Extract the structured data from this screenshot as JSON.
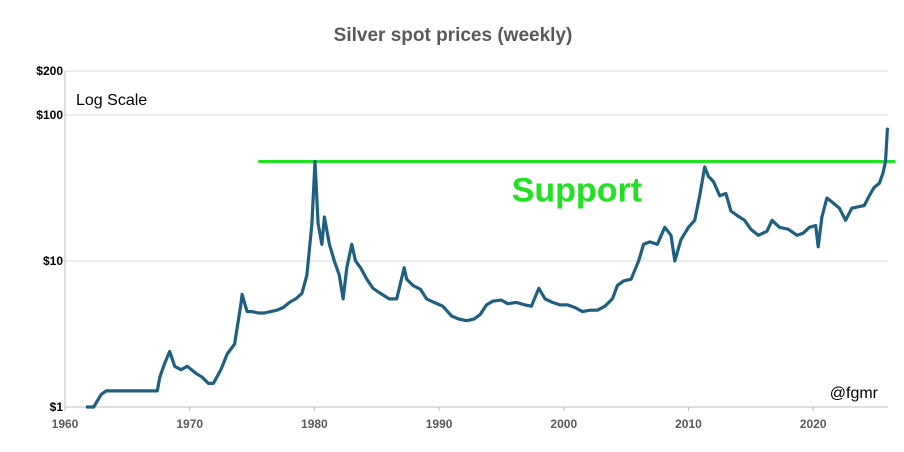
{
  "chart_data": {
    "type": "line",
    "title": "Silver spot prices (weekly)",
    "xlabel": "",
    "ylabel": "",
    "y_scale": "log",
    "scale_note": "Log Scale",
    "credit": "@fgmr",
    "xlim": [
      1960,
      2026
    ],
    "ylim": [
      1,
      200
    ],
    "x_ticks": [
      1960,
      1970,
      1980,
      1990,
      2000,
      2010,
      2020
    ],
    "y_ticks": [
      {
        "value": 1,
        "label": "$1"
      },
      {
        "value": 10,
        "label": "$10"
      },
      {
        "value": 100,
        "label": "$100"
      },
      {
        "value": 200,
        "label": "$200"
      }
    ],
    "grid": "horizontal",
    "series": [
      {
        "name": "",
        "color": "#1f5f7f",
        "x": [
          1961.8,
          1962.3,
          1962.9,
          1963.3,
          1967.4,
          1967.6,
          1968.0,
          1968.4,
          1968.8,
          1969.3,
          1969.8,
          1970.5,
          1971.0,
          1971.5,
          1971.9,
          1972.5,
          1973.0,
          1973.6,
          1974.1,
          1974.2,
          1974.6,
          1975.0,
          1975.5,
          1976.0,
          1976.5,
          1977.0,
          1977.5,
          1978.0,
          1978.5,
          1979.0,
          1979.4,
          1979.8,
          1980.05,
          1980.3,
          1980.6,
          1980.8,
          1981.2,
          1981.6,
          1982.0,
          1982.3,
          1982.6,
          1983.0,
          1983.3,
          1983.7,
          1984.2,
          1984.7,
          1985.3,
          1986.0,
          1986.6,
          1987.2,
          1987.4,
          1987.9,
          1988.5,
          1989.0,
          1989.6,
          1990.3,
          1991.0,
          1991.6,
          1992.2,
          1992.8,
          1993.3,
          1993.8,
          1994.3,
          1995.0,
          1995.5,
          1996.2,
          1996.9,
          1997.4,
          1998.0,
          1998.5,
          1999.1,
          1999.7,
          2000.3,
          2000.9,
          2001.5,
          2002.1,
          2002.7,
          2003.3,
          2003.9,
          2004.3,
          2004.8,
          2005.4,
          2006.0,
          2006.4,
          2006.9,
          2007.5,
          2008.1,
          2008.6,
          2008.9,
          2009.4,
          2010.0,
          2010.5,
          2010.9,
          2011.3,
          2011.6,
          2012.0,
          2012.5,
          2013.0,
          2013.4,
          2013.9,
          2014.5,
          2015.0,
          2015.6,
          2016.3,
          2016.7,
          2017.3,
          2018.0,
          2018.7,
          2019.2,
          2019.7,
          2020.2,
          2020.4,
          2020.7,
          2021.1,
          2021.6,
          2022.1,
          2022.6,
          2023.1,
          2023.6,
          2024.1,
          2024.5,
          2024.9,
          2025.3,
          2025.6,
          2025.8,
          2025.95
        ],
        "y": [
          1.0,
          1.0,
          1.22,
          1.29,
          1.29,
          1.6,
          2.0,
          2.4,
          1.9,
          1.8,
          1.9,
          1.7,
          1.6,
          1.45,
          1.45,
          1.8,
          2.3,
          2.7,
          5.0,
          5.9,
          4.5,
          4.5,
          4.4,
          4.4,
          4.5,
          4.6,
          4.8,
          5.2,
          5.5,
          6.0,
          8.0,
          18.0,
          48.0,
          18.0,
          13.0,
          20.0,
          13.0,
          10.0,
          8.0,
          5.5,
          9.0,
          13.0,
          10.0,
          9.0,
          7.5,
          6.5,
          6.0,
          5.5,
          5.5,
          9.0,
          7.5,
          6.8,
          6.4,
          5.5,
          5.2,
          4.9,
          4.2,
          4.0,
          3.9,
          4.0,
          4.3,
          5.0,
          5.3,
          5.4,
          5.1,
          5.2,
          5.0,
          4.9,
          6.5,
          5.5,
          5.2,
          5.0,
          5.0,
          4.8,
          4.5,
          4.6,
          4.6,
          4.9,
          5.5,
          6.8,
          7.3,
          7.5,
          10.0,
          13.0,
          13.5,
          13.0,
          17.0,
          15.0,
          10.0,
          14.0,
          17.0,
          19.0,
          28.0,
          44.0,
          38.0,
          35.0,
          28.0,
          29.0,
          22.0,
          20.5,
          19.0,
          16.5,
          15.0,
          16.0,
          19.0,
          17.0,
          16.5,
          15.0,
          15.5,
          17.0,
          17.5,
          12.5,
          20.0,
          27.0,
          25.0,
          23.0,
          19.0,
          23.0,
          23.5,
          24.0,
          28.0,
          32.0,
          34.0,
          40.0,
          48.0,
          80.0
        ]
      }
    ],
    "annotations": [
      {
        "type": "hline",
        "y": 48,
        "x_range": [
          1975.5,
          2026.6
        ],
        "color": "#22e022",
        "label": "Support"
      }
    ]
  }
}
